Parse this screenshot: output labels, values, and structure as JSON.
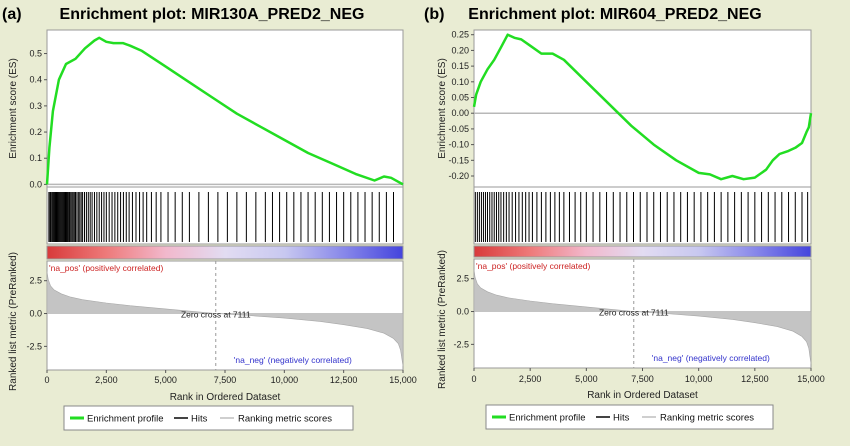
{
  "colors": {
    "page_bg": "#e9ecd3",
    "es_line": "#22dd22",
    "hits": "#000000",
    "metric_fill": "#c4c4c4",
    "pos_label": "#cc2222",
    "neg_label": "#3333cc",
    "zero_line": "#b8b8b8",
    "gradient": [
      "#d83a3a",
      "#ee7a7a",
      "#f2b8cc",
      "#e2dcf2",
      "#c8c8f0",
      "#8888ea",
      "#4444dd"
    ]
  },
  "chart_data": [
    {
      "panel_label": "(a)",
      "type": "line",
      "title": "Enrichment plot: MIR130A_PRED2_NEG",
      "es_ylabel": "Enrichment score (ES)",
      "metric_ylabel": "Ranked list metric (PreRanked)",
      "xlabel": "Rank in Ordered Dataset",
      "xlim": [
        0,
        15000
      ],
      "es_ylim": [
        -0.01,
        0.59
      ],
      "es_yticks": [
        0,
        0.1,
        0.2,
        0.3,
        0.4,
        0.5
      ],
      "es_ytick_labels": [
        "0.0",
        "0.1",
        "0.2",
        "0.3",
        "0.4",
        "0.5"
      ],
      "metric_ylim": [
        -4.3,
        4.0
      ],
      "metric_yticks": [
        2.5,
        0.0,
        -2.5
      ],
      "metric_ytick_labels": [
        "2.5",
        "0.0",
        "-2.5"
      ],
      "xticks": [
        0,
        2500,
        5000,
        7500,
        10000,
        12500,
        15000
      ],
      "xtick_labels": [
        "0",
        "2,500",
        "5,000",
        "7,500",
        "10,000",
        "12,500",
        "15,000"
      ],
      "es_profile": {
        "x": [
          0,
          100,
          250,
          500,
          800,
          1200,
          1600,
          2000,
          2200,
          2500,
          2800,
          3200,
          3500,
          4000,
          5000,
          6000,
          7000,
          8000,
          9000,
          10000,
          11000,
          12000,
          13000,
          13800,
          14200,
          14500,
          14800,
          15000
        ],
        "y": [
          0.0,
          0.14,
          0.28,
          0.4,
          0.46,
          0.48,
          0.52,
          0.55,
          0.56,
          0.545,
          0.54,
          0.54,
          0.53,
          0.51,
          0.45,
          0.39,
          0.33,
          0.27,
          0.22,
          0.17,
          0.12,
          0.08,
          0.04,
          0.015,
          0.03,
          0.025,
          0.01,
          0.0
        ]
      },
      "hits": [
        80,
        130,
        170,
        220,
        260,
        300,
        340,
        380,
        420,
        460,
        500,
        540,
        580,
        620,
        660,
        700,
        740,
        780,
        820,
        860,
        900,
        950,
        1000,
        1050,
        1100,
        1150,
        1200,
        1260,
        1320,
        1380,
        1440,
        1500,
        1580,
        1660,
        1740,
        1820,
        1900,
        2000,
        2100,
        2200,
        2300,
        2400,
        2500,
        2620,
        2740,
        2860,
        2980,
        3100,
        3220,
        3340,
        3460,
        3600,
        3750,
        3900,
        4050,
        4200,
        4400,
        4600,
        4800,
        5100,
        5400,
        5700,
        6000,
        6400,
        6800,
        7200,
        7600,
        8000,
        8400,
        8800,
        9200,
        9500,
        9800,
        10100,
        10400,
        10700,
        11000,
        11300,
        11600,
        11900,
        12200,
        12500,
        12800,
        13100,
        13400,
        13700,
        14000,
        14300,
        14600
      ],
      "metric_curve": {
        "x": [
          0,
          50,
          150,
          300,
          600,
          1000,
          1500,
          2500,
          3500,
          5000,
          6500,
          7111,
          8500,
          10000,
          11500,
          12500,
          13500,
          14200,
          14600,
          14800,
          14900,
          14950,
          15000
        ],
        "y": [
          3.2,
          2.6,
          2.1,
          1.8,
          1.5,
          1.25,
          1.05,
          0.8,
          0.6,
          0.35,
          0.1,
          0.0,
          -0.15,
          -0.35,
          -0.6,
          -0.85,
          -1.15,
          -1.5,
          -1.9,
          -2.3,
          -2.8,
          -3.4,
          -4.0
        ]
      },
      "pos_label": "'na_pos' (positively correlated)",
      "neg_label": "'na_neg' (negatively correlated)",
      "zero_cross_label": "Zero cross at 7111",
      "zero_cross": 7111,
      "legend": [
        "Enrichment profile",
        "Hits",
        "Ranking  metric scores"
      ]
    },
    {
      "panel_label": "(b)",
      "type": "line",
      "title": "Enrichment plot: MIR604_PRED2_NEG",
      "es_ylabel": "Enrichment score (ES)",
      "metric_ylabel": "Ranked list metric (PreRanked)",
      "xlabel": "Rank in Ordered Dataset",
      "xlim": [
        0,
        15000
      ],
      "es_ylim": [
        -0.235,
        0.265
      ],
      "es_yticks": [
        0.25,
        0.2,
        0.15,
        0.1,
        0.05,
        0.0,
        -0.05,
        -0.1,
        -0.15,
        -0.2
      ],
      "es_ytick_labels": [
        "0.25",
        "0.20",
        "0.15",
        "0.10",
        "0.05",
        "0.00",
        "-0.05",
        "-0.10",
        "-0.15",
        "-0.20"
      ],
      "metric_ylim": [
        -4.3,
        4.0
      ],
      "metric_yticks": [
        2.5,
        0.0,
        -2.5
      ],
      "metric_ytick_labels": [
        "2.5",
        "0.0",
        "-2.5"
      ],
      "xticks": [
        0,
        2500,
        5000,
        7500,
        10000,
        12500,
        15000
      ],
      "xtick_labels": [
        "0",
        "2,500",
        "5,000",
        "7,500",
        "10,000",
        "12,500",
        "15,000"
      ],
      "es_profile": {
        "x": [
          0,
          100,
          300,
          600,
          900,
          1200,
          1500,
          1800,
          2100,
          2500,
          3000,
          3500,
          4000,
          5000,
          6000,
          7000,
          8000,
          9000,
          10000,
          10500,
          11000,
          11500,
          12000,
          12500,
          13000,
          13300,
          13600,
          14000,
          14300,
          14600,
          14800,
          14900,
          15000
        ],
        "y": [
          0.02,
          0.06,
          0.1,
          0.14,
          0.17,
          0.21,
          0.25,
          0.24,
          0.235,
          0.215,
          0.19,
          0.19,
          0.17,
          0.1,
          0.03,
          -0.04,
          -0.1,
          -0.15,
          -0.19,
          -0.195,
          -0.21,
          -0.2,
          -0.21,
          -0.205,
          -0.18,
          -0.15,
          -0.13,
          -0.12,
          -0.11,
          -0.095,
          -0.06,
          -0.045,
          0.0
        ]
      },
      "hits": [
        60,
        150,
        240,
        330,
        420,
        510,
        600,
        700,
        800,
        900,
        1000,
        1100,
        1200,
        1320,
        1440,
        1560,
        1700,
        1850,
        2000,
        2150,
        2300,
        2450,
        2600,
        2800,
        3000,
        3200,
        3400,
        3600,
        3800,
        4000,
        4250,
        4500,
        4750,
        5000,
        5300,
        5600,
        5900,
        6200,
        6500,
        6800,
        7100,
        7400,
        7700,
        8000,
        8300,
        8600,
        8900,
        9200,
        9500,
        9800,
        10100,
        10400,
        10700,
        11000,
        11300,
        11600,
        11900,
        12200,
        12500,
        12800,
        13100,
        13400,
        13700,
        14000,
        14300,
        14600,
        14850
      ],
      "metric_curve": {
        "x": [
          0,
          50,
          150,
          300,
          600,
          1000,
          1500,
          2500,
          3500,
          5000,
          6500,
          7111,
          8500,
          10000,
          11500,
          12500,
          13500,
          14200,
          14600,
          14800,
          14900,
          14950,
          15000
        ],
        "y": [
          3.2,
          2.6,
          2.1,
          1.8,
          1.5,
          1.25,
          1.05,
          0.8,
          0.6,
          0.35,
          0.1,
          0.0,
          -0.15,
          -0.35,
          -0.6,
          -0.85,
          -1.15,
          -1.5,
          -1.9,
          -2.3,
          -2.8,
          -3.4,
          -4.0
        ]
      },
      "pos_label": "'na_pos' (positively correlated)",
      "neg_label": "'na_neg' (negatively correlated)",
      "zero_cross_label": "Zero cross at 7111",
      "zero_cross": 7111,
      "legend": [
        "Enrichment profile",
        "Hits",
        "Ranking  metric scores"
      ]
    }
  ]
}
